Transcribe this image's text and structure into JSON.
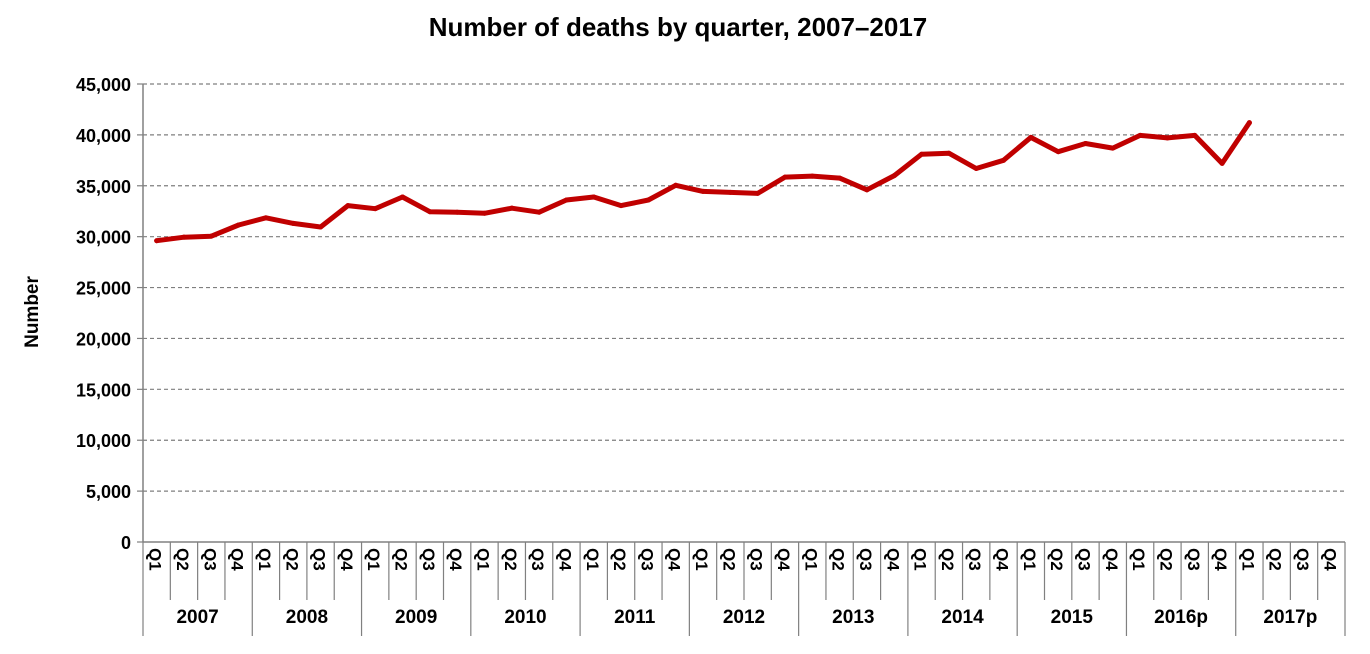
{
  "chart_data": {
    "type": "line",
    "title": "Number of deaths by quarter, 2007–2017",
    "ylabel": "Number",
    "xlabel": "",
    "ylim": [
      0,
      45000
    ],
    "yticks": [
      "0",
      "5,000",
      "10,000",
      "15,000",
      "20,000",
      "25,000",
      "30,000",
      "35,000",
      "40,000",
      "45,000"
    ],
    "years": [
      "2007",
      "2008",
      "2009",
      "2010",
      "2011",
      "2012",
      "2013",
      "2014",
      "2015",
      "2016p",
      "2017p"
    ],
    "quarters": [
      "Q1",
      "Q2",
      "Q3",
      "Q4"
    ],
    "grid": true,
    "line_color": "#c00000",
    "values": [
      29600,
      29950,
      30050,
      31150,
      31850,
      31300,
      30950,
      33050,
      32750,
      33900,
      32450,
      32400,
      32300,
      32800,
      32400,
      33600,
      33900,
      33050,
      33600,
      35050,
      34450,
      34350,
      34250,
      35850,
      35950,
      35750,
      34600,
      36000,
      38100,
      38200,
      36700,
      37500,
      39750,
      38350,
      39150,
      38700,
      39950,
      39700,
      39950,
      37200,
      41200
    ]
  }
}
